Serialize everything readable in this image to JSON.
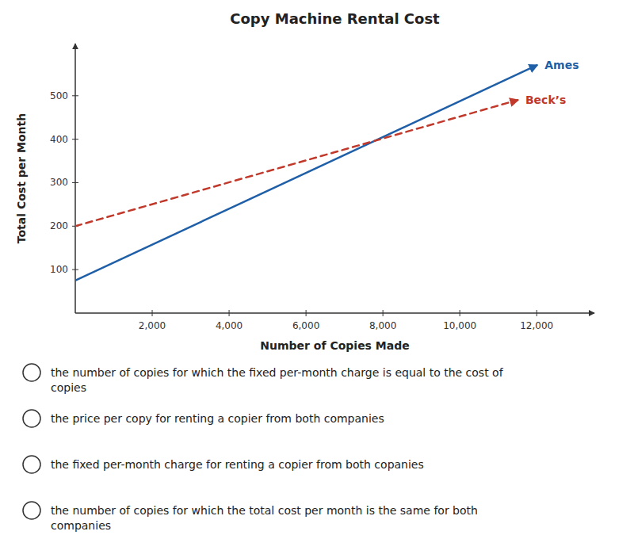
{
  "chart_data": {
    "type": "line",
    "title": "Copy Machine Rental Cost",
    "xlabel": "Number of Copies Made",
    "ylabel": "Total Cost per Month",
    "series": [
      {
        "name": "Ames",
        "x": [
          0,
          12000
        ],
        "values": [
          75,
          570
        ],
        "color": "#1f5fa8",
        "line_style": "solid"
      },
      {
        "name": "Beck’s",
        "x": [
          0,
          11500
        ],
        "values": [
          200,
          490
        ],
        "color": "#c0392b",
        "line_style": "dashed"
      }
    ],
    "xlim": [
      0,
      13500
    ],
    "ylim": [
      0,
      620
    ],
    "xticks": [
      {
        "value": 2000,
        "label": "2,000"
      },
      {
        "value": 4000,
        "label": "4,000"
      },
      {
        "value": 6000,
        "label": "6,000"
      },
      {
        "value": 8000,
        "label": "8,000"
      },
      {
        "value": 10000,
        "label": "10,000"
      },
      {
        "value": 12000,
        "label": "12,000"
      }
    ],
    "yticks": [
      100,
      200,
      300,
      400,
      500
    ],
    "grid": false,
    "annotations": [
      "the number of copies for which the fixed per-month charge is equal to the cost of\ncopies",
      "the price per copy for renting a copier from both companies",
      "the fixed per-month charge for renting a copier from both copanies",
      "the number of copies for which the total cost per month is the same for both\ncompanies"
    ]
  }
}
